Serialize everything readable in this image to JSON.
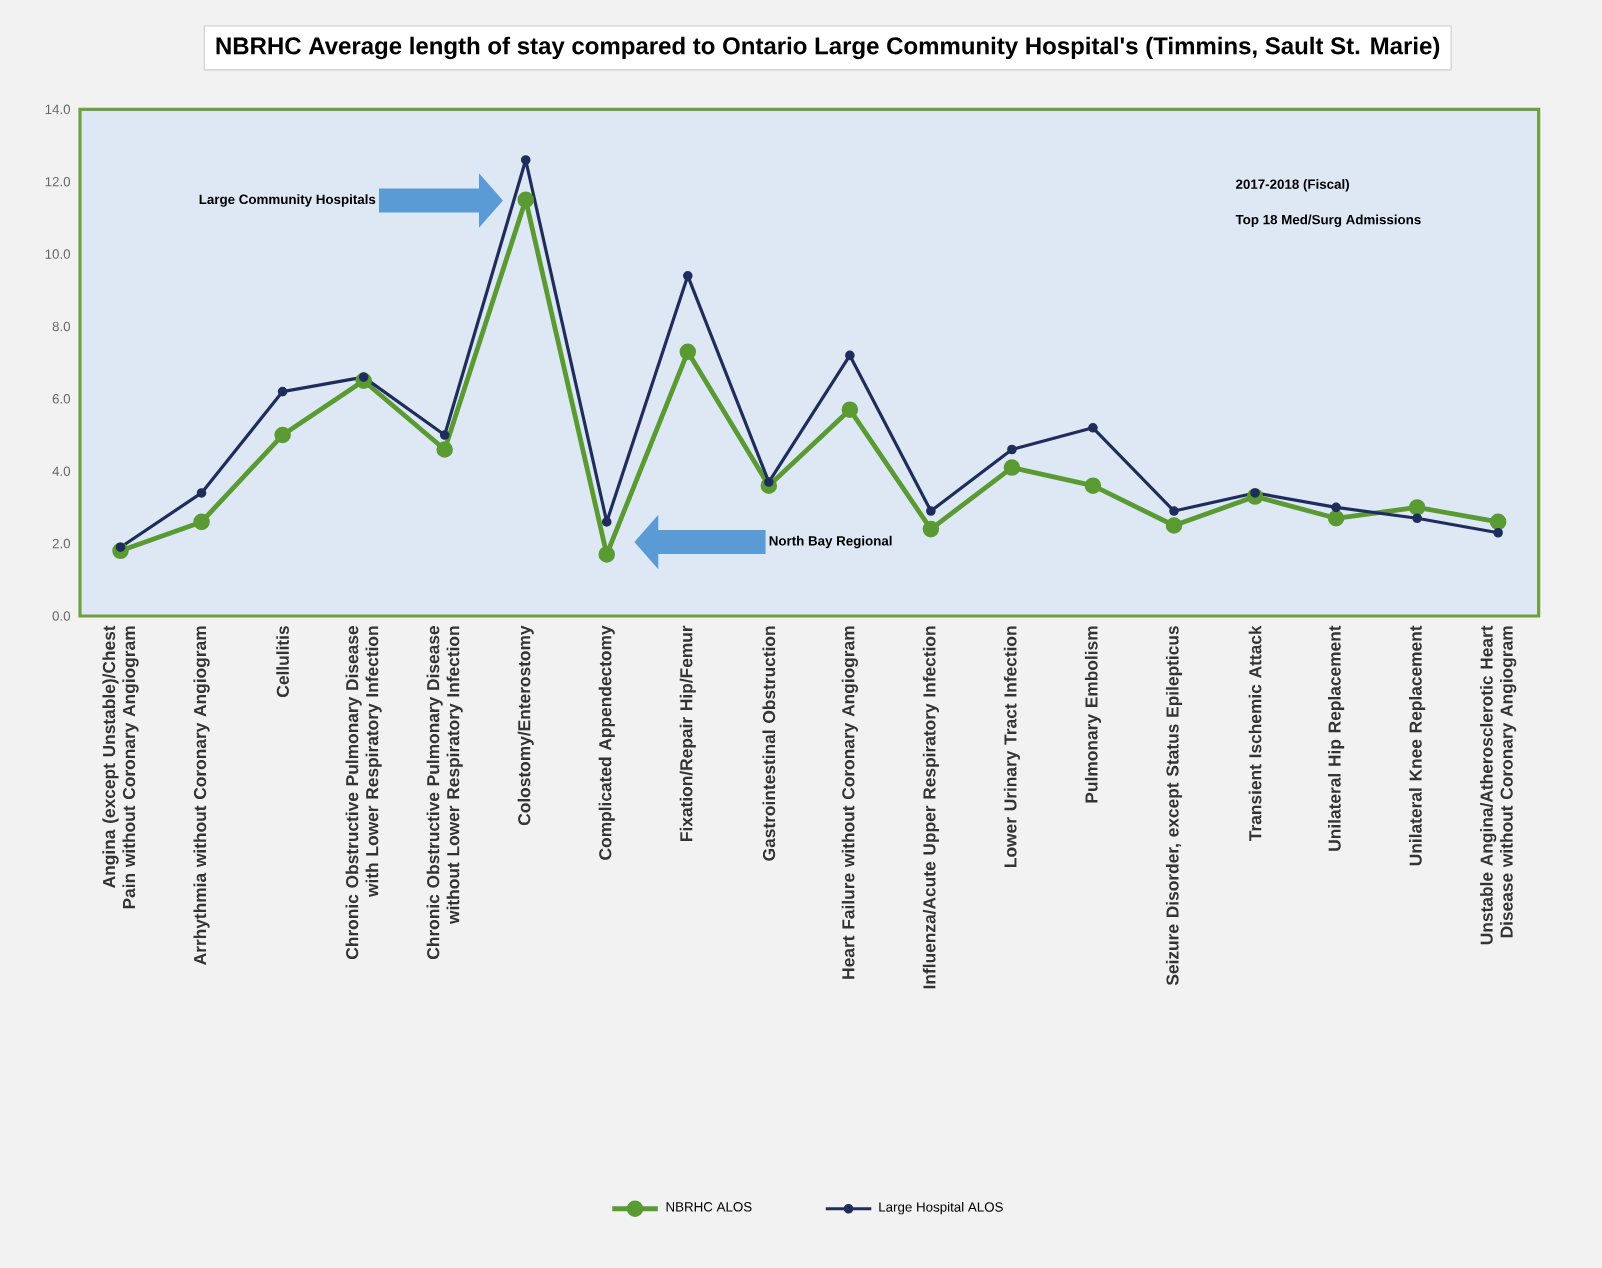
{
  "chart_data": {
    "type": "line",
    "title": "NBRHC Average length of stay compared to Ontario Large Community Hospital's (Timmins, Sault St. Marie)",
    "categories": [
      "Angina (except Unstable)/Chest Pain without Coronary Angiogram",
      "Arrhythmia without Coronary Angiogram",
      "Cellulitis",
      "Chronic Obstructive Pulmonary Disease with Lower Respiratory Infection",
      "Chronic Obstructive Pulmonary Disease without Lower Respiratory Infection",
      "Colostomy/Enterostomy",
      "Complicated Appendectomy",
      "Fixation/Repair Hip/Femur",
      "Gastrointestinal Obstruction",
      "Heart Failure without Coronary Angiogram",
      "Influenza/Acute Upper Respiratory Infection",
      "Lower Urinary Tract Infection",
      "Pulmonary Embolism",
      "Seizure Disorder, except Status Epilepticus",
      "Transient Ischemic Attack",
      "Unilateral Hip Replacement",
      "Unilateral Knee Replacement",
      "Unstable Angina/Atherosclerotic Heart Disease without Coronary Angiogram"
    ],
    "series": [
      {
        "name": "NBRHC ALOS",
        "color": "#5a9a32",
        "values": [
          1.8,
          2.6,
          5.0,
          6.5,
          4.6,
          11.5,
          1.7,
          7.3,
          3.6,
          5.7,
          2.4,
          4.1,
          3.6,
          2.5,
          3.3,
          2.7,
          3.0,
          2.6
        ]
      },
      {
        "name": "Large Hospital ALOS",
        "color": "#1f2d5c",
        "values": [
          1.9,
          3.4,
          6.2,
          6.6,
          5.0,
          12.6,
          2.6,
          9.4,
          3.7,
          7.2,
          2.9,
          4.6,
          5.2,
          2.9,
          3.4,
          3.0,
          2.7,
          2.3
        ]
      }
    ],
    "ylim": [
      0,
      14
    ],
    "yticks": [
      {
        "value": 0,
        "label": "0.0"
      },
      {
        "value": 2,
        "label": "2.0"
      },
      {
        "value": 4,
        "label": "4.0"
      },
      {
        "value": 6,
        "label": "6.0"
      },
      {
        "value": 8,
        "label": "8.0"
      },
      {
        "value": 10,
        "label": "10.0"
      },
      {
        "value": 12,
        "label": "12.0"
      },
      {
        "value": 14,
        "label": "14.0"
      }
    ],
    "annotations": [
      "Large Community Hospitals",
      "North Bay Regional",
      "2017-2018 (Fiscal)",
      "Top 18 Med/Surg Admissions"
    ],
    "grid": false,
    "legend": "bottom",
    "marker": "circle",
    "line_style": "solid"
  }
}
